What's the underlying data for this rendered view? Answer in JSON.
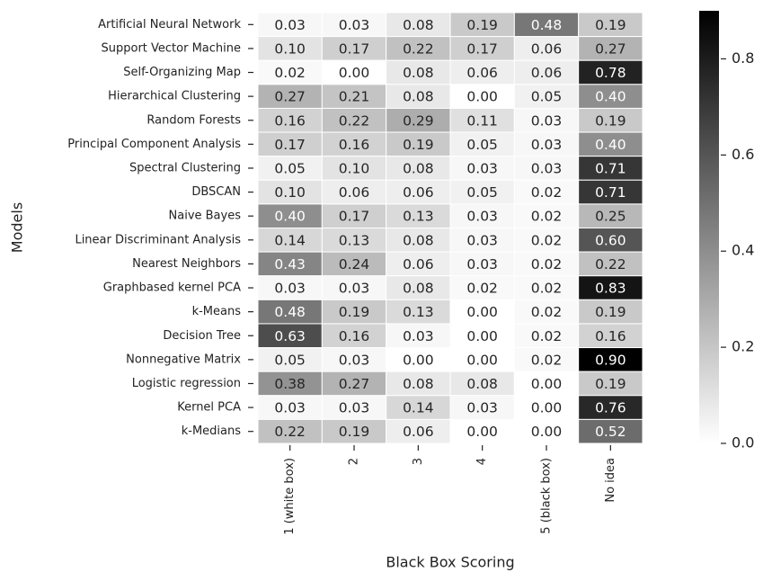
{
  "chart_data": {
    "type": "heatmap",
    "xlabel": "Black Box Scoring",
    "ylabel": "Models",
    "categories": [
      "1 (white box)",
      "2",
      "3",
      "4",
      "5 (black box)",
      "No idea"
    ],
    "rows": [
      "Artificial Neural Network",
      "Support Vector Machine",
      "Self-Organizing Map",
      "Hierarchical Clustering",
      "Random Forests",
      "Principal Component Analysis",
      "Spectral Clustering",
      "DBSCAN",
      "Naive Bayes",
      "Linear Discriminant Analysis",
      "Nearest Neighbors",
      "Graphbased kernel PCA",
      "k-Means",
      "Decision Tree",
      "Nonnegative Matrix",
      "Logistic regression",
      "Kernel PCA",
      "k-Medians"
    ],
    "values": [
      [
        0.03,
        0.03,
        0.08,
        0.19,
        0.48,
        0.19
      ],
      [
        0.1,
        0.17,
        0.22,
        0.17,
        0.06,
        0.27
      ],
      [
        0.02,
        0.0,
        0.08,
        0.06,
        0.06,
        0.78
      ],
      [
        0.27,
        0.21,
        0.08,
        0.0,
        0.05,
        0.4
      ],
      [
        0.16,
        0.22,
        0.29,
        0.11,
        0.03,
        0.19
      ],
      [
        0.17,
        0.16,
        0.19,
        0.05,
        0.03,
        0.4
      ],
      [
        0.05,
        0.1,
        0.08,
        0.03,
        0.03,
        0.71
      ],
      [
        0.1,
        0.06,
        0.06,
        0.05,
        0.02,
        0.71
      ],
      [
        0.4,
        0.17,
        0.13,
        0.03,
        0.02,
        0.25
      ],
      [
        0.14,
        0.13,
        0.08,
        0.03,
        0.02,
        0.6
      ],
      [
        0.43,
        0.24,
        0.06,
        0.03,
        0.02,
        0.22
      ],
      [
        0.03,
        0.03,
        0.08,
        0.02,
        0.02,
        0.83
      ],
      [
        0.48,
        0.19,
        0.13,
        0.0,
        0.02,
        0.19
      ],
      [
        0.63,
        0.16,
        0.03,
        0.0,
        0.02,
        0.16
      ],
      [
        0.05,
        0.03,
        0.0,
        0.0,
        0.02,
        0.9
      ],
      [
        0.38,
        0.27,
        0.08,
        0.08,
        0.0,
        0.19
      ],
      [
        0.03,
        0.03,
        0.14,
        0.03,
        0.0,
        0.76
      ],
      [
        0.22,
        0.19,
        0.06,
        0.0,
        0.0,
        0.52
      ]
    ],
    "value_labels": [
      [
        "0.03",
        "0.03",
        "0.08",
        "0.19",
        "0.48",
        "0.19"
      ],
      [
        "0.10",
        "0.17",
        "0.22",
        "0.17",
        "0.06",
        "0.27"
      ],
      [
        "0.02",
        "0.00",
        "0.08",
        "0.06",
        "0.06",
        "0.78"
      ],
      [
        "0.27",
        "0.21",
        "0.08",
        "0.00",
        "0.05",
        "0.40"
      ],
      [
        "0.16",
        "0.22",
        "0.29",
        "0.11",
        "0.03",
        "0.19"
      ],
      [
        "0.17",
        "0.16",
        "0.19",
        "0.05",
        "0.03",
        "0.40"
      ],
      [
        "0.05",
        "0.10",
        "0.08",
        "0.03",
        "0.03",
        "0.71"
      ],
      [
        "0.10",
        "0.06",
        "0.06",
        "0.05",
        "0.02",
        "0.71"
      ],
      [
        "0.40",
        "0.17",
        "0.13",
        "0.03",
        "0.02",
        "0.25"
      ],
      [
        "0.14",
        "0.13",
        "0.08",
        "0.03",
        "0.02",
        "0.60"
      ],
      [
        "0.43",
        "0.24",
        "0.06",
        "0.03",
        "0.02",
        "0.22"
      ],
      [
        "0.03",
        "0.03",
        "0.08",
        "0.02",
        "0.02",
        "0.83"
      ],
      [
        "0.48",
        "0.19",
        "0.13",
        "0.00",
        "0.02",
        "0.19"
      ],
      [
        "0.63",
        "0.16",
        "0.03",
        "0.00",
        "0.02",
        "0.16"
      ],
      [
        "0.05",
        "0.03",
        "0.00",
        "0.00",
        "0.02",
        "0.90"
      ],
      [
        "0.38",
        "0.27",
        "0.08",
        "0.08",
        "0.00",
        "0.19"
      ],
      [
        "0.03",
        "0.03",
        "0.14",
        "0.03",
        "0.00",
        "0.76"
      ],
      [
        "0.22",
        "0.19",
        "0.06",
        "0.00",
        "0.00",
        "0.52"
      ]
    ],
    "zlim": [
      0,
      0.9
    ],
    "zticks": [
      {
        "value": 0,
        "label": "0.0"
      },
      0.2,
      0.4,
      0.6,
      0.8
    ],
    "colormap": [
      "#ffffff",
      "#000000"
    ]
  }
}
